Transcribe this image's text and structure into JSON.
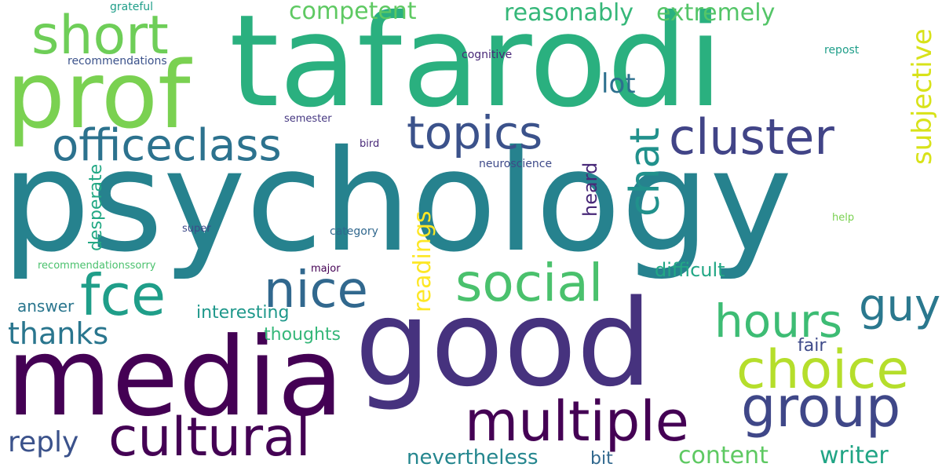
{
  "words": [
    {
      "id": "tafarodi",
      "text": "tafarodi",
      "color": "#2ab07f"
    },
    {
      "id": "psychology",
      "text": "psychology",
      "color": "#26828e"
    },
    {
      "id": "good",
      "text": "good",
      "color": "#46327e"
    },
    {
      "id": "media",
      "text": "media",
      "color": "#440154"
    },
    {
      "id": "prof",
      "text": "prof",
      "color": "#7ad151"
    },
    {
      "id": "short",
      "text": "short",
      "color": "#6ece58"
    },
    {
      "id": "officeclass",
      "text": "officeclass",
      "color": "#2c728e"
    },
    {
      "id": "topics",
      "text": "topics",
      "color": "#3b528b"
    },
    {
      "id": "cluster",
      "text": "cluster",
      "color": "#414487"
    },
    {
      "id": "chat",
      "text": "chat",
      "color": "#21918c"
    },
    {
      "id": "subjective",
      "text": "subjective",
      "color": "#d8e219"
    },
    {
      "id": "competent",
      "text": "competent",
      "color": "#5ec962"
    },
    {
      "id": "reasonably",
      "text": "reasonably",
      "color": "#35b779"
    },
    {
      "id": "extremely",
      "text": "extremely",
      "color": "#54c568"
    },
    {
      "id": "lot",
      "text": "lot",
      "color": "#2d708e"
    },
    {
      "id": "nice",
      "text": "nice",
      "color": "#31688e"
    },
    {
      "id": "social",
      "text": "social",
      "color": "#4ac16d"
    },
    {
      "id": "fce",
      "text": "fce",
      "color": "#1f9e89"
    },
    {
      "id": "hours",
      "text": "hours",
      "color": "#3dbc74"
    },
    {
      "id": "guy",
      "text": "guy",
      "color": "#2a788e"
    },
    {
      "id": "choice",
      "text": "choice",
      "color": "#b5de2b"
    },
    {
      "id": "group",
      "text": "group",
      "color": "#3f4788"
    },
    {
      "id": "multiple",
      "text": "multiple",
      "color": "#440154"
    },
    {
      "id": "cultural",
      "text": "cultural",
      "color": "#440154"
    },
    {
      "id": "thanks",
      "text": "thanks",
      "color": "#2a768e"
    },
    {
      "id": "reply",
      "text": "reply",
      "color": "#3b528b"
    },
    {
      "id": "interesting",
      "text": "interesting",
      "color": "#1f988b"
    },
    {
      "id": "thoughts",
      "text": "thoughts",
      "color": "#35b779"
    },
    {
      "id": "answer",
      "text": "answer",
      "color": "#2a768e"
    },
    {
      "id": "nevertheless",
      "text": "nevertheless",
      "color": "#24868e"
    },
    {
      "id": "bit",
      "text": "bit",
      "color": "#31688e"
    },
    {
      "id": "content",
      "text": "content",
      "color": "#5ec962"
    },
    {
      "id": "writer",
      "text": "writer",
      "color": "#21a585"
    },
    {
      "id": "difficult",
      "text": "difficult",
      "color": "#22a785"
    },
    {
      "id": "fair",
      "text": "fair",
      "color": "#3e4a89"
    },
    {
      "id": "readings",
      "text": "readings",
      "color": "#fde725"
    },
    {
      "id": "desperate",
      "text": "desperate",
      "color": "#22a884"
    },
    {
      "id": "heard",
      "text": "heard",
      "color": "#482878"
    },
    {
      "id": "grateful",
      "text": "grateful",
      "color": "#1f9e89"
    },
    {
      "id": "recommendations",
      "text": "recommendations",
      "color": "#3b528b"
    },
    {
      "id": "cognitive",
      "text": "cognitive",
      "color": "#482878"
    },
    {
      "id": "repost",
      "text": "repost",
      "color": "#1f9e89"
    },
    {
      "id": "semester",
      "text": "semester",
      "color": "#453781"
    },
    {
      "id": "bird",
      "text": "bird",
      "color": "#482878"
    },
    {
      "id": "neuroscience",
      "text": "neuroscience",
      "color": "#3e4a89"
    },
    {
      "id": "super",
      "text": "super",
      "color": "#3e4a89"
    },
    {
      "id": "category",
      "text": "category",
      "color": "#31688e"
    },
    {
      "id": "help",
      "text": "help",
      "color": "#7ad151"
    },
    {
      "id": "recommendationssorry",
      "text": "recommendationssorry",
      "color": "#4ac16d"
    },
    {
      "id": "major",
      "text": "major",
      "color": "#440154"
    }
  ]
}
